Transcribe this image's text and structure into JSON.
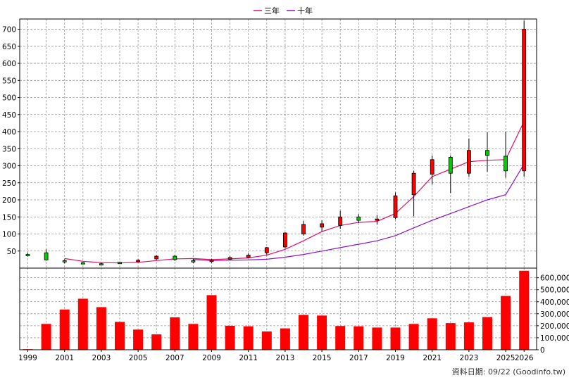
{
  "chart_data": {
    "type": "candlestick+bar",
    "legend": [
      {
        "label": "三年",
        "color": "#e0106a"
      },
      {
        "label": "十年",
        "color": "#8a14c8"
      }
    ],
    "footer": "資料日期: 09/22  (Goodinfo.tw)",
    "x_tick_labels": [
      "1999",
      "2001",
      "2003",
      "2005",
      "2007",
      "2009",
      "2011",
      "2013",
      "2015",
      "2017",
      "2019",
      "2021",
      "2023",
      "2025",
      "2026"
    ],
    "price_axis": {
      "ticks": [
        50,
        100,
        150,
        200,
        250,
        300,
        350,
        400,
        450,
        500,
        550,
        600,
        650,
        700
      ],
      "labels": [
        "50",
        "100",
        "150",
        "200",
        "250",
        "300",
        "350",
        "400",
        "450",
        "500",
        "550",
        "600",
        "650",
        "700"
      ],
      "range": [
        0,
        730
      ]
    },
    "volume_axis": {
      "ticks": [
        0,
        100000,
        200000,
        300000,
        400000,
        500000,
        600000
      ],
      "labels": [
        "0",
        "100,000",
        "200,000",
        "300,000",
        "400,000",
        "500,000",
        "600,000"
      ],
      "range": [
        0,
        680000
      ]
    },
    "years": [
      1999,
      2000,
      2001,
      2002,
      2003,
      2004,
      2005,
      2006,
      2007,
      2008,
      2009,
      2010,
      2011,
      2012,
      2013,
      2014,
      2015,
      2016,
      2017,
      2018,
      2019,
      2020,
      2021,
      2022,
      2023,
      2024,
      2025,
      2026
    ],
    "candles": [
      {
        "year": 1999,
        "open": 40,
        "close": 39,
        "high": 45,
        "low": 34
      },
      {
        "year": 2000,
        "open": 45,
        "close": 24,
        "high": 55,
        "low": 22
      },
      {
        "year": 2001,
        "open": 22,
        "close": 19,
        "high": 26,
        "low": 14
      },
      {
        "year": 2002,
        "open": 16,
        "close": 15,
        "high": 18,
        "low": 13
      },
      {
        "year": 2003,
        "open": 13,
        "close": 12,
        "high": 15,
        "low": 10
      },
      {
        "year": 2004,
        "open": 17,
        "close": 14,
        "high": 19,
        "low": 12
      },
      {
        "year": 2005,
        "open": 19,
        "close": 23,
        "high": 26,
        "low": 17
      },
      {
        "year": 2006,
        "open": 27,
        "close": 35,
        "high": 38,
        "low": 24
      },
      {
        "year": 2007,
        "open": 35,
        "close": 25,
        "high": 39,
        "low": 21
      },
      {
        "year": 2008,
        "open": 22,
        "close": 20,
        "high": 27,
        "low": 15
      },
      {
        "year": 2009,
        "open": 19,
        "close": 23,
        "high": 27,
        "low": 15
      },
      {
        "year": 2010,
        "open": 26,
        "close": 31,
        "high": 35,
        "low": 23
      },
      {
        "year": 2011,
        "open": 32,
        "close": 38,
        "high": 43,
        "low": 29
      },
      {
        "year": 2012,
        "open": 45,
        "close": 60,
        "high": 62,
        "low": 38
      },
      {
        "year": 2013,
        "open": 62,
        "close": 103,
        "high": 105,
        "low": 58
      },
      {
        "year": 2014,
        "open": 100,
        "close": 128,
        "high": 138,
        "low": 95
      },
      {
        "year": 2015,
        "open": 120,
        "close": 130,
        "high": 140,
        "low": 108
      },
      {
        "year": 2016,
        "open": 125,
        "close": 150,
        "high": 168,
        "low": 115
      },
      {
        "year": 2017,
        "open": 150,
        "close": 140,
        "high": 158,
        "low": 132
      },
      {
        "year": 2018,
        "open": 142,
        "close": 144,
        "high": 155,
        "low": 128
      },
      {
        "year": 2019,
        "open": 148,
        "close": 212,
        "high": 222,
        "low": 143
      },
      {
        "year": 2020,
        "open": 215,
        "close": 278,
        "high": 285,
        "low": 152
      },
      {
        "year": 2021,
        "open": 275,
        "close": 318,
        "high": 330,
        "low": 245
      },
      {
        "year": 2022,
        "open": 325,
        "close": 278,
        "high": 330,
        "low": 220
      },
      {
        "year": 2023,
        "open": 278,
        "close": 345,
        "high": 380,
        "low": 268
      },
      {
        "year": 2024,
        "open": 345,
        "close": 330,
        "high": 398,
        "low": 282
      },
      {
        "year": 2025,
        "open": 328,
        "close": 285,
        "high": 400,
        "low": 265
      },
      {
        "year": 2026,
        "open": 285,
        "close": 700,
        "high": 725,
        "low": 268
      }
    ],
    "ma_3yr": [
      null,
      null,
      28,
      20,
      16,
      15,
      17,
      22,
      27,
      28,
      25,
      27,
      30,
      38,
      55,
      80,
      107,
      125,
      134,
      137,
      160,
      210,
      268,
      290,
      312,
      316,
      318,
      430
    ],
    "ma_10yr": [
      null,
      null,
      null,
      null,
      null,
      null,
      null,
      null,
      null,
      25,
      22,
      23,
      24,
      26,
      32,
      40,
      50,
      60,
      70,
      80,
      95,
      118,
      140,
      160,
      180,
      200,
      215,
      305
    ],
    "volume": [
      5000,
      215000,
      335000,
      425000,
      355000,
      232000,
      168000,
      128000,
      270000,
      215000,
      455000,
      200000,
      195000,
      152000,
      178000,
      290000,
      285000,
      198000,
      195000,
      185000,
      185000,
      215000,
      262000,
      222000,
      228000,
      272000,
      448000,
      658000
    ]
  }
}
